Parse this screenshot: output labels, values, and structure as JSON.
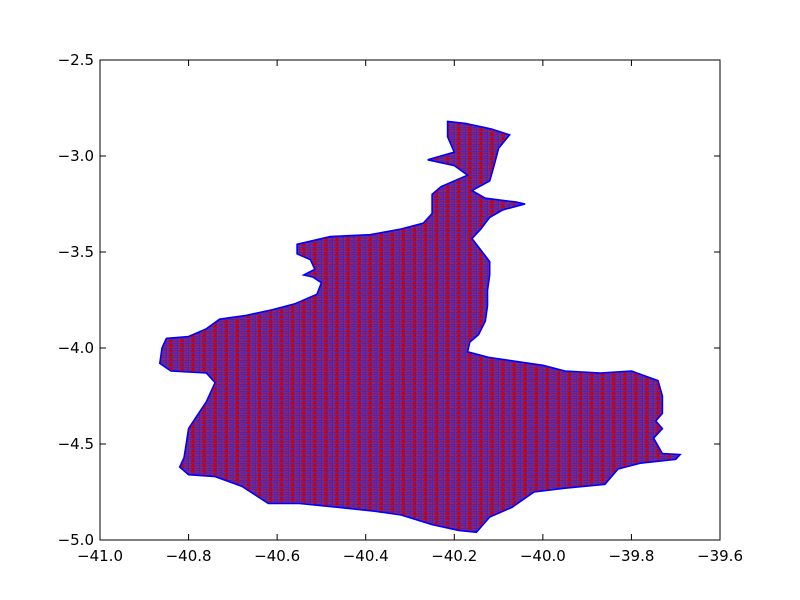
{
  "chart_data": {
    "type": "scatter",
    "title": "",
    "xlabel": "",
    "ylabel": "",
    "xlim": [
      -41.0,
      -39.6
    ],
    "ylim": [
      -5.0,
      -2.5
    ],
    "xticks": [
      -41.0,
      -40.8,
      -40.6,
      -40.4,
      -40.2,
      -40.0,
      -39.8,
      -39.6
    ],
    "yticks": [
      -2.5,
      -3.0,
      -3.5,
      -4.0,
      -4.5,
      -5.0
    ],
    "xtick_labels": [
      "−41.0",
      "−40.8",
      "−40.6",
      "−40.4",
      "−40.2",
      "−40.0",
      "−39.8",
      "−39.6"
    ],
    "ytick_labels": [
      "−2.5",
      "−3.0",
      "−3.5",
      "−4.0",
      "−4.5",
      "−5.0"
    ],
    "grid": false,
    "series": [
      {
        "kind": "boundary-outline",
        "color": "#0000ff",
        "points": [
          [
            -40.215,
            -2.82
          ],
          [
            -40.175,
            -2.83
          ],
          [
            -40.115,
            -2.86
          ],
          [
            -40.075,
            -2.89
          ],
          [
            -40.1,
            -2.96
          ],
          [
            -40.11,
            -3.05
          ],
          [
            -40.12,
            -3.13
          ],
          [
            -40.16,
            -3.18
          ],
          [
            -40.13,
            -3.22
          ],
          [
            -40.06,
            -3.24
          ],
          [
            -40.04,
            -3.25
          ],
          [
            -40.09,
            -3.28
          ],
          [
            -40.12,
            -3.32
          ],
          [
            -40.14,
            -3.38
          ],
          [
            -40.16,
            -3.43
          ],
          [
            -40.14,
            -3.49
          ],
          [
            -40.12,
            -3.55
          ],
          [
            -40.12,
            -3.62
          ],
          [
            -40.125,
            -3.7
          ],
          [
            -40.125,
            -3.78
          ],
          [
            -40.13,
            -3.86
          ],
          [
            -40.145,
            -3.93
          ],
          [
            -40.165,
            -3.97
          ],
          [
            -40.17,
            -4.02
          ],
          [
            -40.12,
            -4.05
          ],
          [
            -40.06,
            -4.07
          ],
          [
            -40.0,
            -4.09
          ],
          [
            -39.95,
            -4.12
          ],
          [
            -39.87,
            -4.13
          ],
          [
            -39.8,
            -4.12
          ],
          [
            -39.74,
            -4.17
          ],
          [
            -39.73,
            -4.25
          ],
          [
            -39.73,
            -4.34
          ],
          [
            -39.745,
            -4.38
          ],
          [
            -39.73,
            -4.42
          ],
          [
            -39.75,
            -4.47
          ],
          [
            -39.73,
            -4.55
          ],
          [
            -39.69,
            -4.555
          ],
          [
            -39.7,
            -4.58
          ],
          [
            -39.78,
            -4.6
          ],
          [
            -39.83,
            -4.63
          ],
          [
            -39.86,
            -4.71
          ],
          [
            -39.95,
            -4.73
          ],
          [
            -40.02,
            -4.75
          ],
          [
            -40.07,
            -4.83
          ],
          [
            -40.12,
            -4.88
          ],
          [
            -40.15,
            -4.96
          ],
          [
            -40.19,
            -4.95
          ],
          [
            -40.25,
            -4.92
          ],
          [
            -40.32,
            -4.87
          ],
          [
            -40.38,
            -4.85
          ],
          [
            -40.46,
            -4.83
          ],
          [
            -40.55,
            -4.81
          ],
          [
            -40.62,
            -4.81
          ],
          [
            -40.68,
            -4.72
          ],
          [
            -40.74,
            -4.67
          ],
          [
            -40.8,
            -4.66
          ],
          [
            -40.82,
            -4.62
          ],
          [
            -40.81,
            -4.57
          ],
          [
            -40.8,
            -4.42
          ],
          [
            -40.78,
            -4.35
          ],
          [
            -40.76,
            -4.28
          ],
          [
            -40.74,
            -4.18
          ],
          [
            -40.76,
            -4.13
          ],
          [
            -40.84,
            -4.12
          ],
          [
            -40.865,
            -4.08
          ],
          [
            -40.86,
            -4.0
          ],
          [
            -40.85,
            -3.95
          ],
          [
            -40.8,
            -3.94
          ],
          [
            -40.76,
            -3.9
          ],
          [
            -40.73,
            -3.85
          ],
          [
            -40.67,
            -3.83
          ],
          [
            -40.61,
            -3.8
          ],
          [
            -40.56,
            -3.77
          ],
          [
            -40.51,
            -3.72
          ],
          [
            -40.5,
            -3.66
          ],
          [
            -40.52,
            -3.63
          ],
          [
            -40.54,
            -3.62
          ],
          [
            -40.515,
            -3.59
          ],
          [
            -40.525,
            -3.54
          ],
          [
            -40.555,
            -3.51
          ],
          [
            -40.555,
            -3.46
          ],
          [
            -40.48,
            -3.42
          ],
          [
            -40.39,
            -3.41
          ],
          [
            -40.32,
            -3.38
          ],
          [
            -40.27,
            -3.35
          ],
          [
            -40.25,
            -3.3
          ],
          [
            -40.25,
            -3.2
          ],
          [
            -40.23,
            -3.16
          ],
          [
            -40.17,
            -3.1
          ],
          [
            -40.2,
            -3.05
          ],
          [
            -40.26,
            -3.02
          ],
          [
            -40.2,
            -2.98
          ],
          [
            -40.215,
            -2.9
          ],
          [
            -40.215,
            -2.82
          ]
        ]
      },
      {
        "kind": "triangulation-mesh",
        "edge_color": "#0000ff",
        "vertex_marker": "^",
        "vertex_color": "#cc0000",
        "grid_spacing_x": 0.0125,
        "grid_spacing_y": 0.0125
      }
    ]
  }
}
